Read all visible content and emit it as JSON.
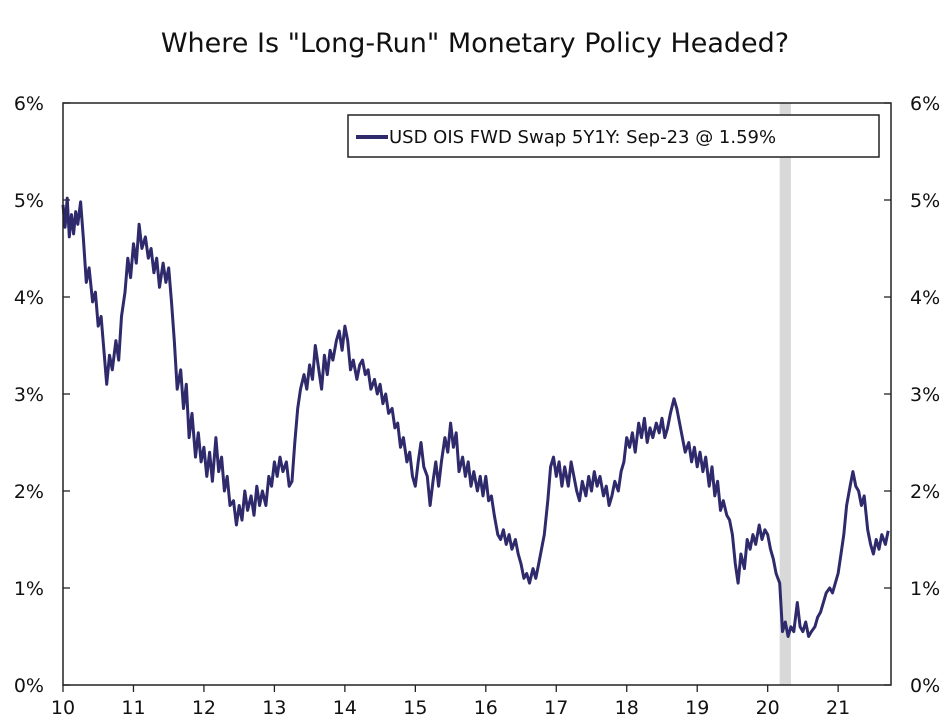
{
  "chart_data": {
    "type": "line",
    "title": "Where Is \"Long-Run\" Monetary Policy Headed?",
    "xlabel": "",
    "ylabel": "",
    "xlim": [
      2010,
      2021.75
    ],
    "ylim": [
      0,
      6
    ],
    "x_ticks": [
      2010,
      2011,
      2012,
      2013,
      2014,
      2015,
      2016,
      2017,
      2018,
      2019,
      2020,
      2021
    ],
    "x_tick_labels": [
      "10",
      "11",
      "12",
      "13",
      "14",
      "15",
      "16",
      "17",
      "18",
      "19",
      "20",
      "21"
    ],
    "y_ticks": [
      0,
      1,
      2,
      3,
      4,
      5,
      6
    ],
    "y_tick_labels": [
      "0%",
      "1%",
      "2%",
      "3%",
      "4%",
      "5%",
      "6%"
    ],
    "legend": {
      "position": "top-right",
      "entries": [
        "USD OIS FWD Swap 5Y1Y: Sep-23 @ 1.59%"
      ]
    },
    "shaded_region": {
      "x": [
        2020.17,
        2020.33
      ],
      "color": "#d9d9d9"
    },
    "series": [
      {
        "name": "USD OIS FWD Swap 5Y1Y: Sep-23 @ 1.59%",
        "color": "#2e2a6b",
        "x": [
          2010.0,
          2010.03,
          2010.06,
          2010.09,
          2010.12,
          2010.15,
          2010.18,
          2010.21,
          2010.25,
          2010.29,
          2010.33,
          2010.37,
          2010.42,
          2010.46,
          2010.5,
          2010.54,
          2010.58,
          2010.62,
          2010.66,
          2010.7,
          2010.75,
          2010.79,
          2010.83,
          2010.88,
          2010.92,
          2010.96,
          2011.0,
          2011.04,
          2011.08,
          2011.12,
          2011.17,
          2011.21,
          2011.25,
          2011.29,
          2011.33,
          2011.37,
          2011.42,
          2011.46,
          2011.5,
          2011.54,
          2011.58,
          2011.62,
          2011.67,
          2011.71,
          2011.75,
          2011.79,
          2011.83,
          2011.88,
          2011.92,
          2011.96,
          2012.0,
          2012.04,
          2012.08,
          2012.12,
          2012.17,
          2012.21,
          2012.25,
          2012.29,
          2012.33,
          2012.37,
          2012.42,
          2012.46,
          2012.5,
          2012.54,
          2012.58,
          2012.62,
          2012.67,
          2012.71,
          2012.75,
          2012.79,
          2012.83,
          2012.88,
          2012.92,
          2012.96,
          2013.0,
          2013.04,
          2013.08,
          2013.12,
          2013.17,
          2013.21,
          2013.25,
          2013.29,
          2013.33,
          2013.37,
          2013.42,
          2013.46,
          2013.5,
          2013.54,
          2013.58,
          2013.62,
          2013.67,
          2013.71,
          2013.75,
          2013.79,
          2013.83,
          2013.88,
          2013.92,
          2013.96,
          2014.0,
          2014.04,
          2014.08,
          2014.12,
          2014.17,
          2014.21,
          2014.25,
          2014.29,
          2014.33,
          2014.37,
          2014.42,
          2014.46,
          2014.5,
          2014.54,
          2014.58,
          2014.62,
          2014.67,
          2014.71,
          2014.75,
          2014.79,
          2014.83,
          2014.88,
          2014.92,
          2014.96,
          2015.0,
          2015.04,
          2015.08,
          2015.12,
          2015.17,
          2015.21,
          2015.25,
          2015.29,
          2015.33,
          2015.37,
          2015.42,
          2015.46,
          2015.5,
          2015.54,
          2015.58,
          2015.62,
          2015.67,
          2015.71,
          2015.75,
          2015.79,
          2015.83,
          2015.88,
          2015.92,
          2015.96,
          2016.0,
          2016.04,
          2016.08,
          2016.12,
          2016.17,
          2016.21,
          2016.25,
          2016.29,
          2016.33,
          2016.37,
          2016.42,
          2016.46,
          2016.5,
          2016.54,
          2016.58,
          2016.62,
          2016.67,
          2016.71,
          2016.75,
          2016.79,
          2016.83,
          2016.88,
          2016.92,
          2016.96,
          2017.0,
          2017.04,
          2017.08,
          2017.12,
          2017.17,
          2017.21,
          2017.25,
          2017.29,
          2017.33,
          2017.37,
          2017.42,
          2017.46,
          2017.5,
          2017.54,
          2017.58,
          2017.62,
          2017.67,
          2017.71,
          2017.75,
          2017.79,
          2017.83,
          2017.88,
          2017.92,
          2017.96,
          2018.0,
          2018.04,
          2018.08,
          2018.12,
          2018.17,
          2018.21,
          2018.25,
          2018.29,
          2018.33,
          2018.37,
          2018.42,
          2018.46,
          2018.5,
          2018.54,
          2018.58,
          2018.62,
          2018.67,
          2018.71,
          2018.75,
          2018.79,
          2018.83,
          2018.88,
          2018.92,
          2018.96,
          2019.0,
          2019.04,
          2019.08,
          2019.12,
          2019.17,
          2019.21,
          2019.25,
          2019.29,
          2019.33,
          2019.37,
          2019.42,
          2019.46,
          2019.5,
          2019.54,
          2019.58,
          2019.62,
          2019.67,
          2019.71,
          2019.75,
          2019.79,
          2019.83,
          2019.88,
          2019.92,
          2019.96,
          2020.0,
          2020.04,
          2020.08,
          2020.12,
          2020.17,
          2020.21,
          2020.25,
          2020.29,
          2020.33,
          2020.37,
          2020.42,
          2020.46,
          2020.5,
          2020.54,
          2020.58,
          2020.62,
          2020.67,
          2020.71,
          2020.75,
          2020.79,
          2020.83,
          2020.88,
          2020.92,
          2020.96,
          2021.0,
          2021.04,
          2021.08,
          2021.12,
          2021.17,
          2021.21,
          2021.25,
          2021.29,
          2021.33,
          2021.37,
          2021.42,
          2021.46,
          2021.5,
          2021.54,
          2021.58,
          2021.62,
          2021.67,
          2021.71
        ],
        "values": [
          4.95,
          4.72,
          5.02,
          4.62,
          4.85,
          4.65,
          4.88,
          4.75,
          4.98,
          4.6,
          4.15,
          4.3,
          3.95,
          4.05,
          3.7,
          3.8,
          3.45,
          3.1,
          3.4,
          3.25,
          3.55,
          3.35,
          3.8,
          4.05,
          4.4,
          4.2,
          4.55,
          4.35,
          4.75,
          4.5,
          4.62,
          4.4,
          4.5,
          4.25,
          4.4,
          4.1,
          4.35,
          4.15,
          4.3,
          3.95,
          3.55,
          3.05,
          3.25,
          2.85,
          3.1,
          2.55,
          2.8,
          2.35,
          2.6,
          2.3,
          2.45,
          2.15,
          2.4,
          2.1,
          2.55,
          2.2,
          2.35,
          2.0,
          2.15,
          1.85,
          1.9,
          1.65,
          1.85,
          1.7,
          2.0,
          1.8,
          1.95,
          1.75,
          2.05,
          1.85,
          2.0,
          1.85,
          2.15,
          2.05,
          2.3,
          2.15,
          2.35,
          2.2,
          2.3,
          2.05,
          2.1,
          2.5,
          2.85,
          3.05,
          3.2,
          3.05,
          3.3,
          3.15,
          3.5,
          3.3,
          3.05,
          3.4,
          3.2,
          3.45,
          3.35,
          3.55,
          3.65,
          3.45,
          3.7,
          3.55,
          3.25,
          3.35,
          3.15,
          3.3,
          3.35,
          3.2,
          3.25,
          3.05,
          3.15,
          3.0,
          3.1,
          2.9,
          3.0,
          2.8,
          2.85,
          2.65,
          2.7,
          2.45,
          2.55,
          2.3,
          2.4,
          2.15,
          2.05,
          2.3,
          2.5,
          2.25,
          2.15,
          1.85,
          2.1,
          2.3,
          2.05,
          2.3,
          2.55,
          2.4,
          2.7,
          2.45,
          2.6,
          2.2,
          2.35,
          2.15,
          2.3,
          2.05,
          2.2,
          2.0,
          2.15,
          1.95,
          2.15,
          1.9,
          1.95,
          1.75,
          1.55,
          1.5,
          1.6,
          1.45,
          1.55,
          1.4,
          1.5,
          1.35,
          1.25,
          1.1,
          1.15,
          1.05,
          1.2,
          1.1,
          1.25,
          1.4,
          1.55,
          1.9,
          2.25,
          2.35,
          2.15,
          2.3,
          2.05,
          2.25,
          2.05,
          2.3,
          2.15,
          2.0,
          1.9,
          2.1,
          1.95,
          2.15,
          2.0,
          2.2,
          2.05,
          2.15,
          1.95,
          2.05,
          1.85,
          1.95,
          2.1,
          2.0,
          2.2,
          2.3,
          2.55,
          2.45,
          2.6,
          2.4,
          2.7,
          2.55,
          2.75,
          2.5,
          2.65,
          2.55,
          2.7,
          2.6,
          2.75,
          2.55,
          2.65,
          2.8,
          2.95,
          2.85,
          2.7,
          2.55,
          2.4,
          2.5,
          2.3,
          2.45,
          2.25,
          2.4,
          2.2,
          2.35,
          2.05,
          2.25,
          1.95,
          2.1,
          1.8,
          1.9,
          1.75,
          1.7,
          1.55,
          1.25,
          1.05,
          1.35,
          1.2,
          1.5,
          1.4,
          1.55,
          1.45,
          1.65,
          1.5,
          1.6,
          1.55,
          1.4,
          1.3,
          1.15,
          1.05,
          0.55,
          0.65,
          0.5,
          0.6,
          0.55,
          0.85,
          0.6,
          0.55,
          0.65,
          0.5,
          0.55,
          0.6,
          0.7,
          0.75,
          0.85,
          0.95,
          1.0,
          0.95,
          1.05,
          1.15,
          1.35,
          1.55,
          1.85,
          2.05,
          2.2,
          2.05,
          2.0,
          1.85,
          1.95,
          1.6,
          1.45,
          1.35,
          1.5,
          1.4,
          1.55,
          1.45,
          1.59
        ]
      }
    ]
  }
}
